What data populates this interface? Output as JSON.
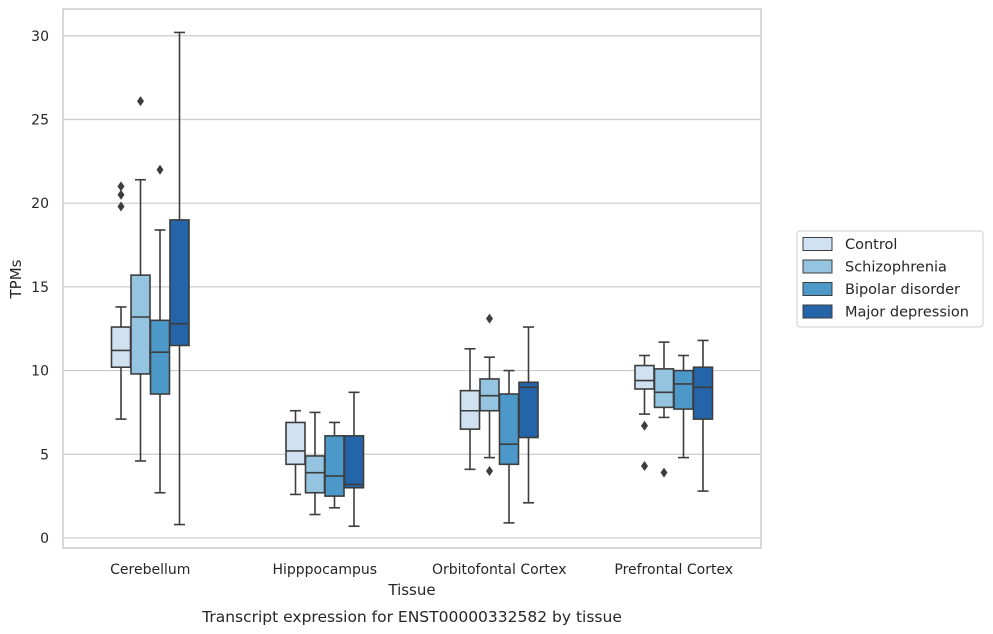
{
  "chart_data": {
    "type": "box",
    "title": "",
    "caption": "Transcript expression for ENST00000332582 by tissue",
    "xlabel": "Tissue",
    "ylabel": "TPMs",
    "ylim": [
      -0.6,
      31.6
    ],
    "yticks": [
      0,
      5,
      10,
      15,
      20,
      25,
      30
    ],
    "grid": true,
    "legend_position": "right",
    "categories": [
      "Cerebellum",
      "Hipppocampus",
      "Orbitofontal Cortex",
      "Prefrontal Cortex"
    ],
    "series": [
      {
        "name": "Control",
        "color": "#d0e1f2",
        "boxes": [
          {
            "whislo": 7.1,
            "q1": 10.2,
            "med": 11.2,
            "q3": 12.6,
            "whishi": 13.8,
            "fliers": [
              19.8,
              20.5,
              21.0
            ]
          },
          {
            "whislo": 2.6,
            "q1": 4.4,
            "med": 5.2,
            "q3": 6.9,
            "whishi": 7.6,
            "fliers": []
          },
          {
            "whislo": 4.1,
            "q1": 6.5,
            "med": 7.6,
            "q3": 8.8,
            "whishi": 11.3,
            "fliers": []
          },
          {
            "whislo": 7.4,
            "q1": 8.9,
            "med": 9.4,
            "q3": 10.3,
            "whishi": 10.9,
            "fliers": [
              6.7,
              4.3
            ]
          }
        ]
      },
      {
        "name": "Schizophrenia",
        "color": "#94c4df",
        "boxes": [
          {
            "whislo": 4.6,
            "q1": 9.8,
            "med": 13.2,
            "q3": 15.7,
            "whishi": 21.4,
            "fliers": [
              26.1
            ]
          },
          {
            "whislo": 1.4,
            "q1": 2.7,
            "med": 3.9,
            "q3": 4.9,
            "whishi": 7.5,
            "fliers": []
          },
          {
            "whislo": 4.8,
            "q1": 7.6,
            "med": 8.5,
            "q3": 9.5,
            "whishi": 10.8,
            "fliers": [
              13.1,
              4.0
            ]
          },
          {
            "whislo": 7.2,
            "q1": 7.8,
            "med": 8.7,
            "q3": 10.1,
            "whishi": 11.7,
            "fliers": [
              3.9
            ]
          }
        ]
      },
      {
        "name": "Bipolar disorder",
        "color": "#4b98c9",
        "boxes": [
          {
            "whislo": 2.7,
            "q1": 8.6,
            "med": 11.1,
            "q3": 13.0,
            "whishi": 18.4,
            "fliers": [
              22.0
            ]
          },
          {
            "whislo": 1.8,
            "q1": 2.5,
            "med": 3.7,
            "q3": 6.1,
            "whishi": 6.9,
            "fliers": []
          },
          {
            "whislo": 0.9,
            "q1": 4.4,
            "med": 5.6,
            "q3": 8.6,
            "whishi": 10.0,
            "fliers": []
          },
          {
            "whislo": 4.8,
            "q1": 7.7,
            "med": 9.2,
            "q3": 10.0,
            "whishi": 10.9,
            "fliers": []
          }
        ]
      },
      {
        "name": "Major depression",
        "color": "#2464a9",
        "boxes": [
          {
            "whislo": 0.8,
            "q1": 11.5,
            "med": 12.8,
            "q3": 19.0,
            "whishi": 30.2,
            "fliers": []
          },
          {
            "whislo": 0.7,
            "q1": 3.0,
            "med": 3.2,
            "q3": 6.1,
            "whishi": 8.7,
            "fliers": []
          },
          {
            "whislo": 2.1,
            "q1": 6.0,
            "med": 9.0,
            "q3": 9.3,
            "whishi": 12.6,
            "fliers": []
          },
          {
            "whislo": 2.8,
            "q1": 7.1,
            "med": 9.0,
            "q3": 10.2,
            "whishi": 11.8,
            "fliers": []
          }
        ]
      }
    ]
  }
}
